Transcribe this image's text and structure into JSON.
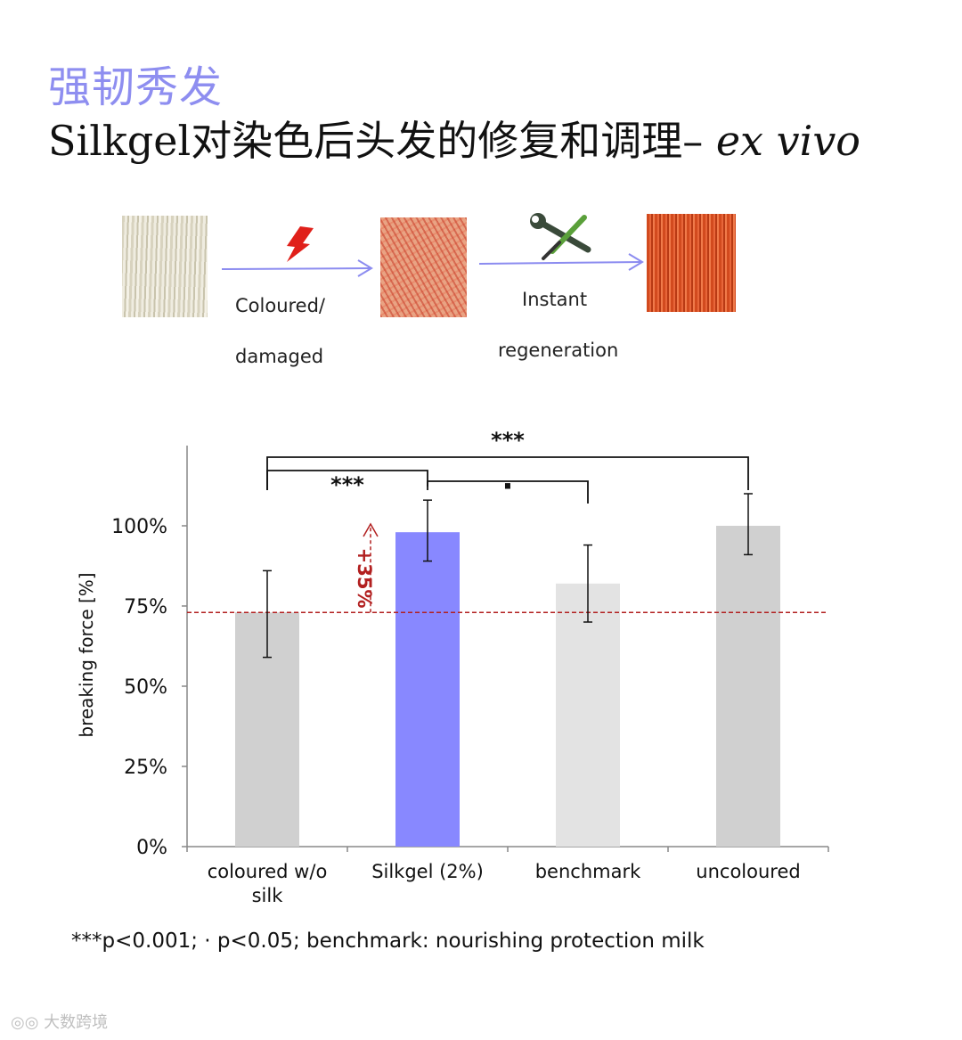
{
  "header": {
    "subtitle": "强韧秀发",
    "title_main": "Silkgel对染色后头发的修复和调理– ",
    "title_italic": "ex vivo"
  },
  "process": {
    "step1_label_line1": "Coloured/",
    "step1_label_line2": "damaged",
    "step2_label_line1": "Instant",
    "step2_label_line2": "regeneration",
    "arrow_color": "#8c8cf0",
    "icons": [
      "lightning-icon",
      "tools-icon"
    ]
  },
  "chart_data": {
    "type": "bar",
    "categories": [
      "coloured w/o silk",
      "Silkgel (2%)",
      "benchmark",
      "uncoloured"
    ],
    "category_lines": [
      [
        "coloured w/o",
        "silk"
      ],
      [
        "Silkgel (2%)"
      ],
      [
        "benchmark"
      ],
      [
        "uncoloured"
      ]
    ],
    "values": [
      73,
      98,
      82,
      100
    ],
    "error_low": [
      59,
      89,
      70,
      91
    ],
    "error_high": [
      86,
      108,
      94,
      110
    ],
    "colors": [
      "#d0d0d0",
      "#8888ff",
      "#e3e3e3",
      "#d0d0d0"
    ],
    "ylabel": "breaking force [%]",
    "ylim": [
      0,
      125
    ],
    "yticks": [
      0,
      25,
      50,
      75,
      100
    ],
    "ytick_labels": [
      "0%",
      "25%",
      "50%",
      "75%",
      "100%"
    ],
    "reference_line": {
      "value": 73,
      "color": "#b22020",
      "style": "dashed"
    },
    "annotation": {
      "text": "+35%",
      "color": "#b22020",
      "from": 73,
      "to": 100
    },
    "significance": [
      {
        "between": [
          0,
          3
        ],
        "label": "***"
      },
      {
        "between": [
          0,
          1
        ],
        "label": "***"
      },
      {
        "between": [
          1,
          2
        ],
        "label": "·"
      }
    ],
    "grid": false
  },
  "footnote": "***p<0.001; · p<0.05; benchmark: nourishing protection milk",
  "watermark": "大数跨境"
}
